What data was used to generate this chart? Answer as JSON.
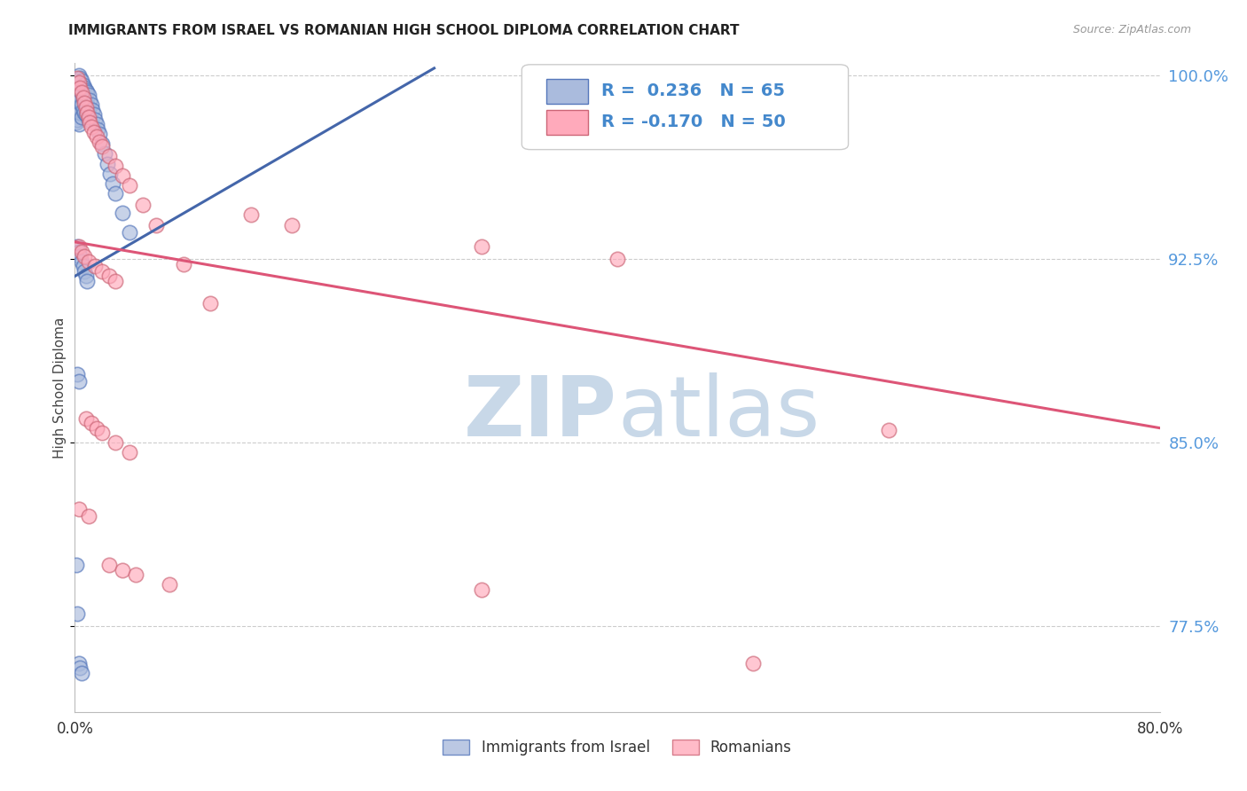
{
  "title": "IMMIGRANTS FROM ISRAEL VS ROMANIAN HIGH SCHOOL DIPLOMA CORRELATION CHART",
  "source": "Source: ZipAtlas.com",
  "ylabel": "High School Diploma",
  "xlim": [
    0.0,
    0.8
  ],
  "ylim": [
    0.74,
    1.005
  ],
  "ytick_vals": [
    1.0,
    0.925,
    0.85,
    0.775
  ],
  "ytick_labels": [
    "100.0%",
    "92.5%",
    "85.0%",
    "77.5%"
  ],
  "xtick_vals": [
    0.0,
    0.1,
    0.2,
    0.3,
    0.4,
    0.5,
    0.6,
    0.7,
    0.8
  ],
  "xtick_labels": [
    "0.0%",
    "",
    "",
    "",
    "",
    "",
    "",
    "",
    "80.0%"
  ],
  "legend_label1": "Immigrants from Israel",
  "legend_label2": "Romanians",
  "R1": "0.236",
  "N1": "65",
  "R2": "-0.170",
  "N2": "50",
  "blue_face": "#AABBDD",
  "blue_edge": "#5577BB",
  "pink_face": "#FFAABB",
  "pink_edge": "#CC6677",
  "line_blue_color": "#4466AA",
  "line_pink_color": "#DD5577",
  "watermark_color": "#C8D8E8",
  "grid_color": "#CCCCCC",
  "blue_line_x0": 0.0,
  "blue_line_y0": 0.918,
  "blue_line_x1": 0.265,
  "blue_line_y1": 1.003,
  "pink_line_x0": 0.0,
  "pink_line_y0": 0.932,
  "pink_line_x1": 0.8,
  "pink_line_y1": 0.856,
  "blue_x": [
    0.001,
    0.001,
    0.001,
    0.002,
    0.002,
    0.002,
    0.002,
    0.003,
    0.003,
    0.003,
    0.003,
    0.003,
    0.004,
    0.004,
    0.004,
    0.004,
    0.005,
    0.005,
    0.005,
    0.005,
    0.006,
    0.006,
    0.006,
    0.007,
    0.007,
    0.007,
    0.008,
    0.008,
    0.008,
    0.009,
    0.009,
    0.01,
    0.01,
    0.01,
    0.011,
    0.012,
    0.013,
    0.014,
    0.015,
    0.016,
    0.017,
    0.018,
    0.02,
    0.022,
    0.024,
    0.026,
    0.028,
    0.03,
    0.035,
    0.04,
    0.002,
    0.003,
    0.004,
    0.005,
    0.006,
    0.007,
    0.008,
    0.009,
    0.002,
    0.003,
    0.001,
    0.002,
    0.003,
    0.004,
    0.005
  ],
  "blue_y": [
    0.995,
    0.988,
    0.981,
    0.998,
    0.993,
    0.987,
    0.982,
    1.0,
    0.997,
    0.992,
    0.986,
    0.98,
    0.999,
    0.995,
    0.99,
    0.985,
    0.998,
    0.993,
    0.988,
    0.983,
    0.996,
    0.991,
    0.986,
    0.995,
    0.99,
    0.985,
    0.994,
    0.989,
    0.984,
    0.993,
    0.988,
    0.992,
    0.987,
    0.982,
    0.99,
    0.988,
    0.986,
    0.984,
    0.982,
    0.98,
    0.978,
    0.976,
    0.972,
    0.968,
    0.964,
    0.96,
    0.956,
    0.952,
    0.944,
    0.936,
    0.93,
    0.928,
    0.926,
    0.924,
    0.922,
    0.92,
    0.918,
    0.916,
    0.878,
    0.875,
    0.8,
    0.78,
    0.76,
    0.758,
    0.756
  ],
  "pink_x": [
    0.002,
    0.003,
    0.004,
    0.005,
    0.006,
    0.007,
    0.008,
    0.009,
    0.01,
    0.011,
    0.012,
    0.014,
    0.016,
    0.018,
    0.02,
    0.025,
    0.03,
    0.035,
    0.04,
    0.05,
    0.06,
    0.08,
    0.1,
    0.13,
    0.16,
    0.3,
    0.4,
    0.6,
    0.003,
    0.005,
    0.007,
    0.01,
    0.015,
    0.02,
    0.025,
    0.03,
    0.008,
    0.012,
    0.016,
    0.02,
    0.03,
    0.04,
    0.025,
    0.035,
    0.045,
    0.07,
    0.3,
    0.5,
    0.003,
    0.01
  ],
  "pink_y": [
    0.999,
    0.997,
    0.995,
    0.993,
    0.991,
    0.989,
    0.987,
    0.985,
    0.983,
    0.981,
    0.979,
    0.977,
    0.975,
    0.973,
    0.971,
    0.967,
    0.963,
    0.959,
    0.955,
    0.947,
    0.939,
    0.923,
    0.907,
    0.943,
    0.939,
    0.93,
    0.925,
    0.855,
    0.93,
    0.928,
    0.926,
    0.924,
    0.922,
    0.92,
    0.918,
    0.916,
    0.86,
    0.858,
    0.856,
    0.854,
    0.85,
    0.846,
    0.8,
    0.798,
    0.796,
    0.792,
    0.79,
    0.76,
    0.823,
    0.82
  ]
}
